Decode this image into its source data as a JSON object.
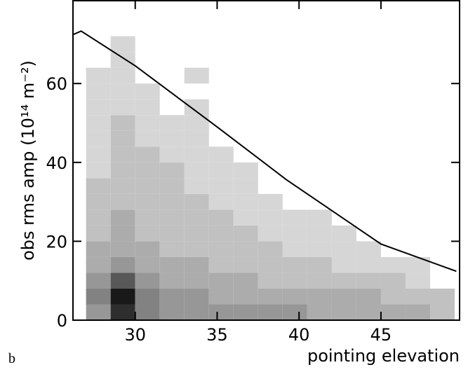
{
  "chart_data": {
    "type": "heatmap",
    "panel_label": "b",
    "xlabel": "pointing elevation",
    "ylabel": "obs rms amp (10¹⁴ m⁻²)",
    "xlim": [
      26.2,
      49.8
    ],
    "ylim": [
      0,
      81
    ],
    "xticks": [
      30,
      35,
      40,
      45
    ],
    "yticks": [
      0,
      20,
      40,
      60
    ],
    "xbins": [
      27,
      28.5,
      30,
      31.5,
      33,
      34.5,
      36,
      37.5,
      39,
      40.5,
      42,
      43.5,
      45,
      46.5,
      48,
      49.5
    ],
    "ybins": [
      0,
      4,
      8,
      12,
      16,
      20,
      24,
      28,
      32,
      36,
      40,
      44,
      48,
      52,
      56,
      60,
      64,
      68,
      72
    ],
    "z": [
      [
        4,
        9,
        5,
        4,
        4,
        4,
        4,
        4,
        4,
        3,
        3,
        3,
        3,
        3,
        2
      ],
      [
        5,
        10,
        5,
        4,
        4,
        3,
        3,
        3,
        3,
        3,
        3,
        3,
        2,
        2,
        2
      ],
      [
        4,
        7,
        4,
        3,
        3,
        3,
        3,
        2,
        2,
        2,
        2,
        2,
        2,
        1,
        null
      ],
      [
        3,
        4,
        3,
        3,
        3,
        2,
        2,
        2,
        2,
        2,
        1,
        1,
        1,
        1,
        null
      ],
      [
        3,
        3,
        3,
        2,
        2,
        2,
        2,
        2,
        1,
        1,
        1,
        1,
        null,
        null,
        null
      ],
      [
        2,
        3,
        2,
        2,
        2,
        2,
        2,
        1,
        1,
        1,
        1,
        null,
        null,
        null,
        null
      ],
      [
        2,
        3,
        2,
        2,
        2,
        2,
        1,
        1,
        1,
        1,
        null,
        null,
        null,
        null,
        null
      ],
      [
        2,
        2,
        2,
        2,
        2,
        1,
        1,
        1,
        null,
        null,
        null,
        null,
        null,
        null,
        null
      ],
      [
        2,
        2,
        2,
        2,
        1,
        1,
        1,
        null,
        null,
        null,
        null,
        null,
        null,
        null,
        null
      ],
      [
        1,
        2,
        2,
        2,
        1,
        1,
        1,
        null,
        null,
        null,
        null,
        null,
        null,
        null,
        null
      ],
      [
        1,
        2,
        2,
        1,
        1,
        1,
        null,
        null,
        null,
        null,
        null,
        null,
        null,
        null,
        null
      ],
      [
        1,
        2,
        1,
        1,
        1,
        null,
        null,
        null,
        null,
        null,
        null,
        null,
        null,
        null,
        null
      ],
      [
        1,
        2,
        1,
        1,
        1,
        null,
        null,
        null,
        null,
        null,
        null,
        null,
        null,
        null,
        null
      ],
      [
        1,
        1,
        1,
        null,
        1,
        null,
        null,
        null,
        null,
        null,
        null,
        null,
        null,
        null,
        null
      ],
      [
        1,
        1,
        1,
        null,
        null,
        null,
        null,
        null,
        null,
        null,
        null,
        null,
        null,
        null,
        null
      ],
      [
        1,
        1,
        null,
        null,
        1,
        null,
        null,
        null,
        null,
        null,
        null,
        null,
        null,
        null,
        null
      ],
      [
        null,
        1,
        null,
        null,
        null,
        null,
        null,
        null,
        null,
        null,
        null,
        null,
        null,
        null,
        null
      ],
      [
        null,
        1,
        null,
        null,
        null,
        null,
        null,
        null,
        null,
        null,
        null,
        null,
        null,
        null,
        null
      ]
    ],
    "line": {
      "color": "#000000",
      "x": [
        26.2,
        26.7,
        30,
        35,
        39.2,
        45,
        49.6
      ],
      "y": [
        72.4,
        73.3,
        64.5,
        49,
        35.7,
        19.3,
        12.4
      ]
    }
  }
}
